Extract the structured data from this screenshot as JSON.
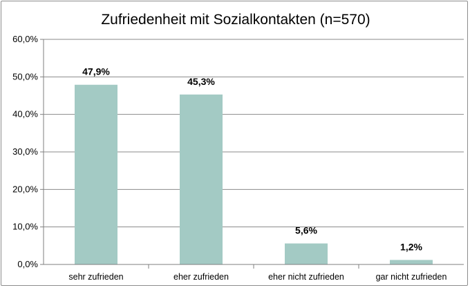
{
  "chart_data": {
    "type": "bar",
    "title": "Zufriedenheit mit Sozialkontakten (n=570)",
    "xlabel": "",
    "ylabel": "",
    "categories": [
      "sehr zufrieden",
      "eher zufrieden",
      "eher nicht zufrieden",
      "gar nicht zufrieden"
    ],
    "values": [
      47.9,
      45.3,
      5.6,
      1.2
    ],
    "value_labels": [
      "47,9%",
      "45,3%",
      "5,6%",
      "1,2%"
    ],
    "ylim": [
      0,
      60
    ],
    "yticks": [
      0,
      10,
      20,
      30,
      40,
      50,
      60
    ],
    "ytick_labels": [
      "0,0%",
      "10,0%",
      "20,0%",
      "30,0%",
      "40,0%",
      "50,0%",
      "60,0%"
    ],
    "grid": true,
    "legend": "none",
    "colors": {
      "bar": "#a3cac4",
      "grid": "#8a8a8a",
      "axis": "#7f7f7f",
      "text": "#000000"
    }
  }
}
